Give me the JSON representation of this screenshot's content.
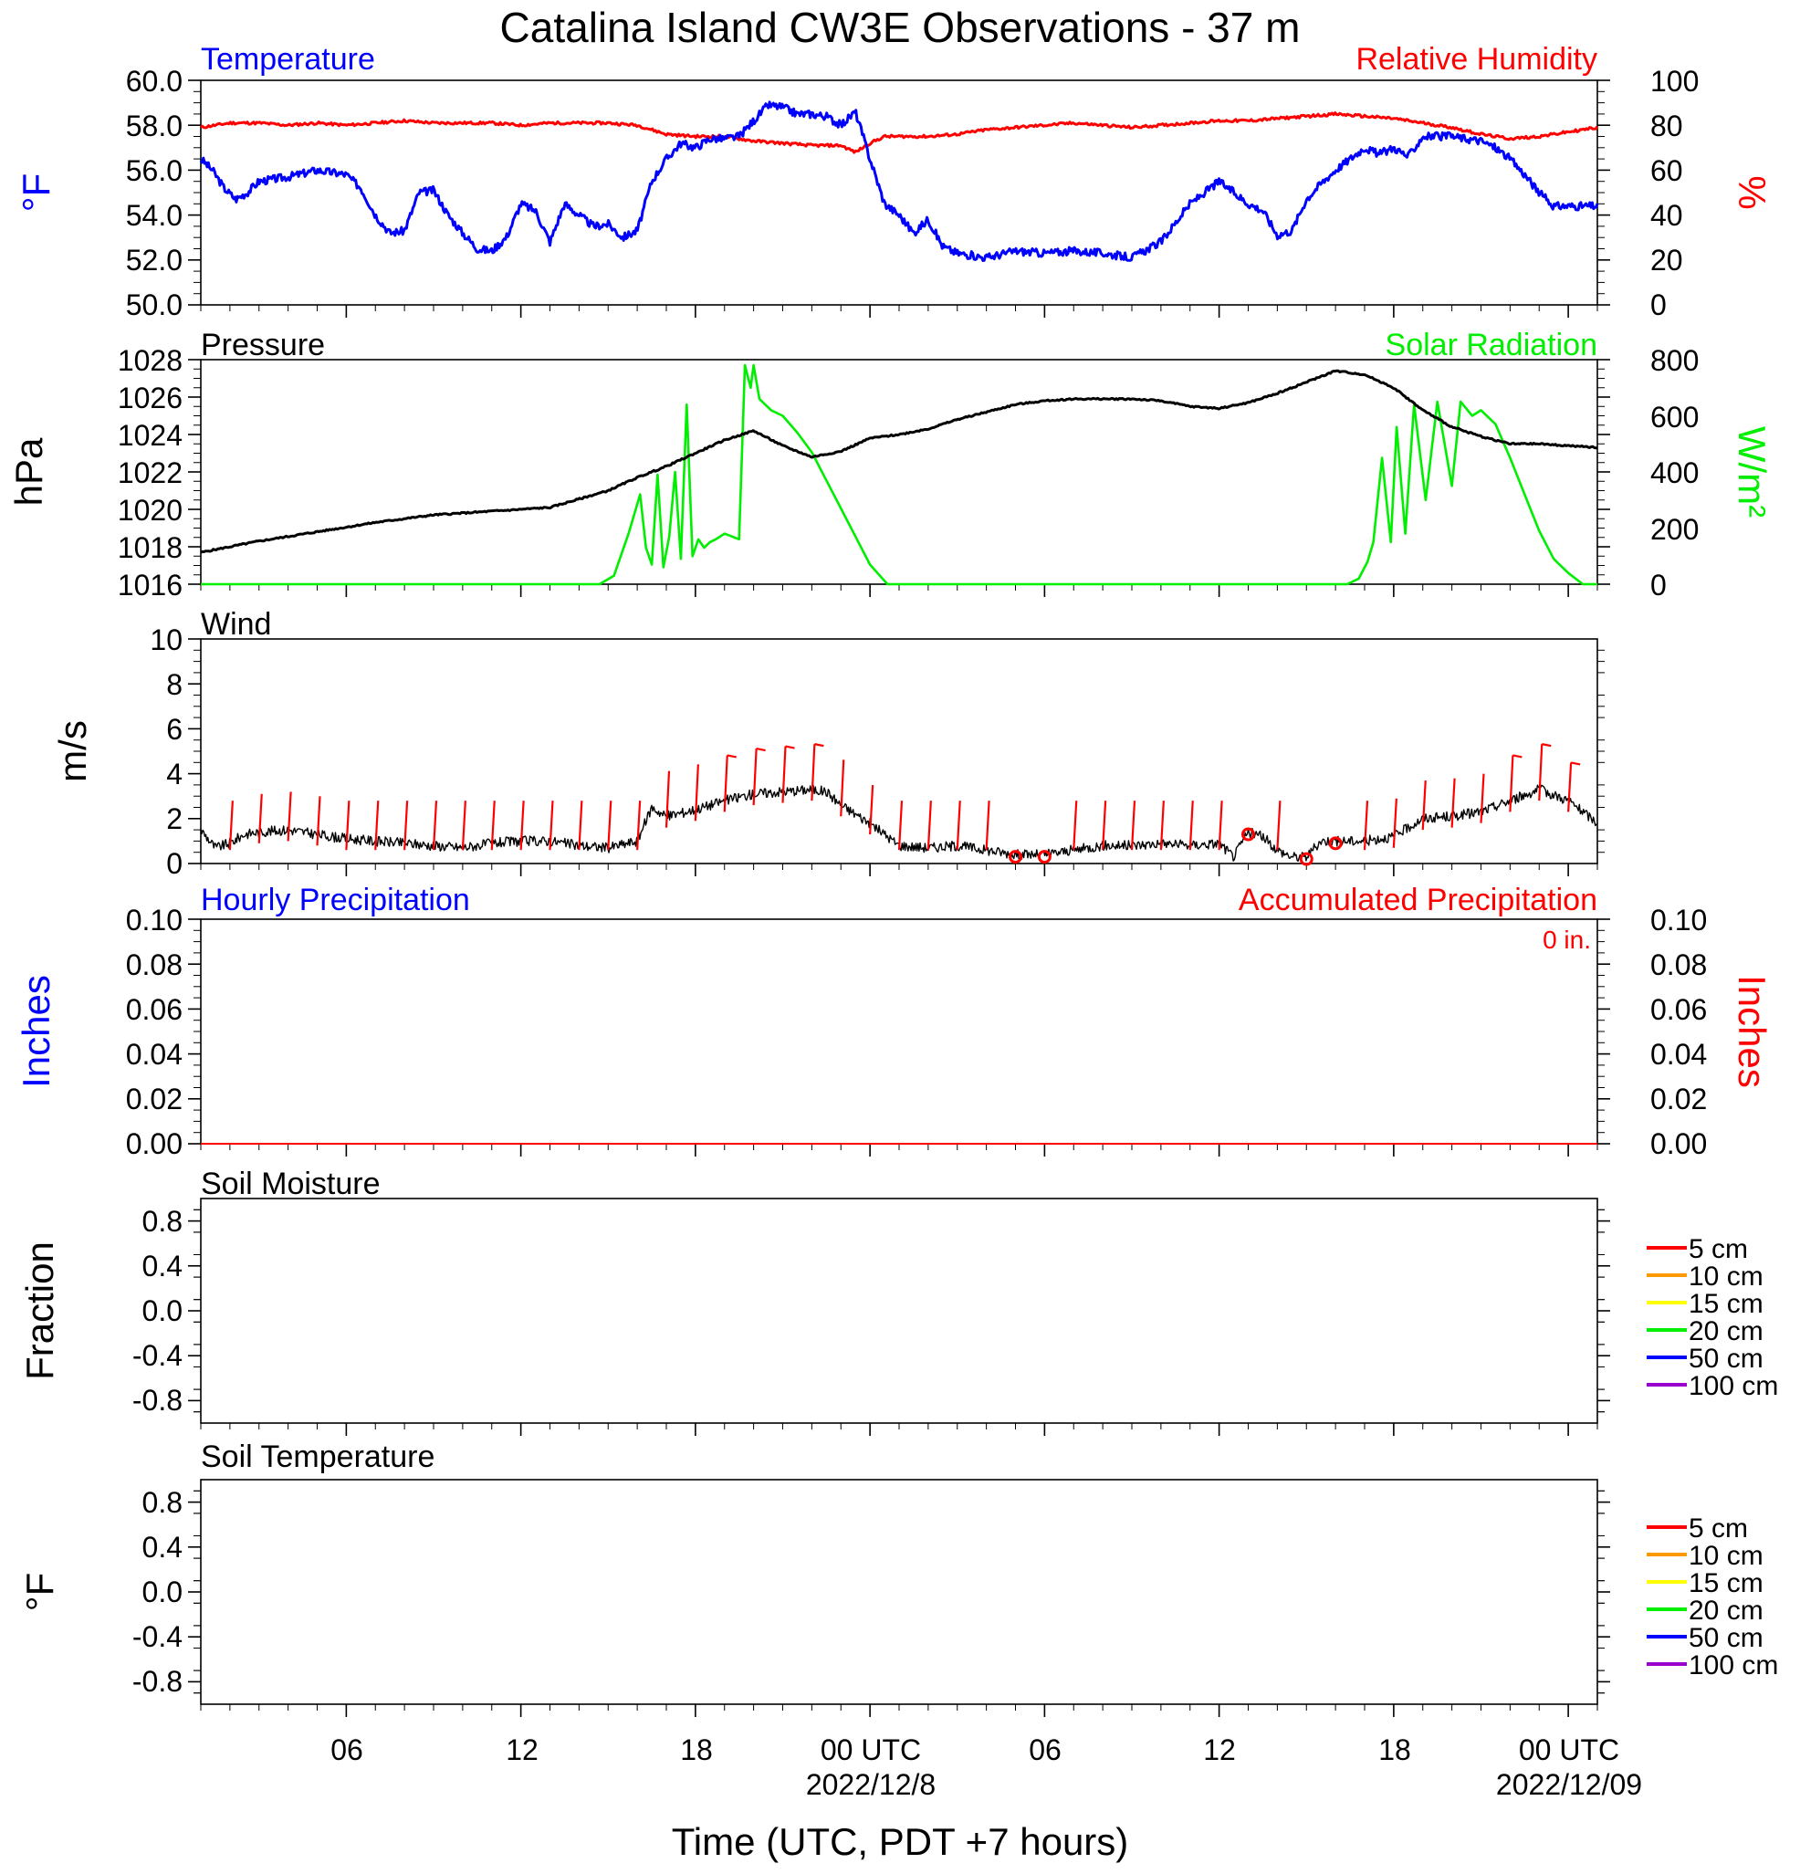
{
  "title": "Catalina Island CW3E Observations - 37 m",
  "xlabel": "Time (UTC, PDT +7 hours)",
  "x_axis": {
    "range_hours": [
      0,
      48
    ],
    "start": "2022-12-07 01:00 UTC",
    "ticks": [
      {
        "h": 5,
        "label": "06",
        "sub": ""
      },
      {
        "h": 11,
        "label": "12",
        "sub": ""
      },
      {
        "h": 17,
        "label": "18",
        "sub": ""
      },
      {
        "h": 23,
        "label": "00 UTC",
        "sub": "2022/12/8"
      },
      {
        "h": 29,
        "label": "06",
        "sub": ""
      },
      {
        "h": 35,
        "label": "12",
        "sub": ""
      },
      {
        "h": 41,
        "label": "18",
        "sub": ""
      },
      {
        "h": 47,
        "label": "00 UTC",
        "sub": "2022/12/09"
      }
    ]
  },
  "colors": {
    "temperature": "#0000ff",
    "humidity": "#ff0000",
    "pressure": "#000000",
    "solar": "#00ee00",
    "wind": "#000000",
    "wind_barb": "#ff0000",
    "hourly_precip": "#0000ff",
    "accum_precip": "#ff0000"
  },
  "panels": {
    "temp_rh": {
      "left_title": "Temperature",
      "right_title": "Relative Humidity",
      "left_ylabel": "°F",
      "right_ylabel": "%",
      "left_ticks": [
        "60.0",
        "58.0",
        "56.0",
        "54.0",
        "52.0",
        "50.0"
      ],
      "right_ticks": [
        "100",
        "80",
        "60",
        "40",
        "20",
        "0"
      ]
    },
    "pressure_solar": {
      "left_title": "Pressure",
      "right_title": "Solar Radiation",
      "left_ylabel": "hPa",
      "right_ylabel": "W/m²",
      "left_ticks": [
        "1028",
        "1026",
        "1024",
        "1022",
        "1020",
        "1018",
        "1016"
      ],
      "right_ticks": [
        "800",
        "600",
        "400",
        "200",
        "0"
      ]
    },
    "wind": {
      "left_title": "Wind",
      "left_ylabel": "m/s",
      "left_ticks": [
        "10",
        "8",
        "6",
        "4",
        "2",
        "0"
      ]
    },
    "precip": {
      "left_title": "Hourly Precipitation",
      "right_title": "Accumulated Precipitation",
      "accum_note": "0 in.",
      "left_ylabel": "Inches",
      "right_ylabel": "Inches",
      "left_ticks": [
        "0.10",
        "0.08",
        "0.06",
        "0.04",
        "0.02",
        "0.00"
      ],
      "right_ticks": [
        "0.10",
        "0.08",
        "0.06",
        "0.04",
        "0.02",
        "0.00"
      ]
    },
    "soil_moisture": {
      "left_title": "Soil Moisture",
      "left_ylabel": "Fraction",
      "left_ticks": [
        "0.8",
        "0.4",
        "0.0",
        "-0.4",
        "-0.8"
      ]
    },
    "soil_temp": {
      "left_title": "Soil Temperature",
      "left_ylabel": "°F",
      "left_ticks": [
        "0.8",
        "0.4",
        "0.0",
        "-0.4",
        "-0.8"
      ]
    }
  },
  "soil_legend": [
    {
      "label": "5 cm",
      "color": "#ff0000"
    },
    {
      "label": "10 cm",
      "color": "#ff9900"
    },
    {
      "label": "15 cm",
      "color": "#ffff00"
    },
    {
      "label": "20 cm",
      "color": "#00ee00"
    },
    {
      "label": "50 cm",
      "color": "#0000ff"
    },
    {
      "label": "100 cm",
      "color": "#9900cc"
    }
  ],
  "chart_data": [
    {
      "type": "line",
      "title": "Temperature",
      "ylabel": "°F",
      "ylim": [
        50,
        60
      ],
      "series": [
        {
          "name": "Temperature",
          "color": "#0000ff",
          "x": [
            0,
            0.4,
            0.8,
            1.2,
            1.6,
            2,
            3,
            4,
            5,
            5.5,
            6,
            6.5,
            7,
            7.5,
            8,
            8.5,
            9,
            9.5,
            10,
            10.5,
            11,
            11.5,
            12,
            12.5,
            13,
            13.5,
            14,
            14.5,
            15,
            15.5,
            16,
            16.5,
            17,
            17.5,
            18,
            18.5,
            19,
            19.5,
            20,
            20.5,
            21,
            21.5,
            22,
            22.5,
            23,
            23.5,
            24,
            24.5,
            25,
            25.5,
            26,
            27,
            28,
            29,
            30,
            31,
            32,
            33,
            34,
            35,
            35.5,
            36,
            36.5,
            37,
            37.5,
            38,
            38.5,
            39,
            39.5,
            40,
            40.5,
            41,
            41.5,
            42,
            42.5,
            43,
            43.5,
            44,
            44.5,
            45,
            45.5,
            46,
            46.5,
            47,
            47.5,
            48
          ],
          "y": [
            56.5,
            56,
            55.2,
            54.7,
            55,
            55.5,
            55.7,
            56,
            55.8,
            55.2,
            54,
            53.2,
            53.3,
            55,
            55.1,
            54,
            53.2,
            52.5,
            52.4,
            53,
            54.5,
            54.2,
            52.8,
            54.5,
            54,
            53.5,
            53.6,
            53,
            53.3,
            55.5,
            56.5,
            57.2,
            57,
            57.4,
            57.4,
            57.5,
            58.2,
            58.9,
            58.8,
            58.5,
            58.5,
            58.4,
            58,
            58.6,
            56.5,
            54.5,
            54,
            53.2,
            53.8,
            52.6,
            52.3,
            52.1,
            52.4,
            52.3,
            52.4,
            52.3,
            52.1,
            52.8,
            54.5,
            55.5,
            55,
            54.5,
            54.2,
            53.1,
            53.3,
            54.7,
            55.4,
            56,
            56.5,
            57,
            56.7,
            57,
            56.6,
            57.5,
            57.5,
            57.5,
            57.4,
            57.3,
            57,
            56.5,
            55.8,
            55,
            54.4,
            54.4,
            54.4,
            54.4
          ]
        },
        {
          "name": "Relative Humidity",
          "color": "#ff0000",
          "x": [
            0,
            1,
            2,
            3,
            4,
            5,
            6,
            7,
            8,
            9,
            10,
            11,
            12,
            13,
            14,
            15,
            16,
            17,
            18,
            19,
            20,
            21,
            22,
            22.5,
            23,
            23.5,
            24,
            25,
            26,
            27,
            28,
            29,
            30,
            31,
            32,
            33,
            34,
            35,
            36,
            37,
            38,
            39,
            40,
            41,
            42,
            43,
            44,
            45,
            46,
            47,
            48
          ],
          "y": [
            79,
            81,
            81,
            80,
            81,
            80,
            81,
            82,
            81,
            81,
            81,
            80,
            81,
            81,
            81,
            80,
            76,
            75,
            75,
            73,
            72,
            71,
            71,
            68,
            72,
            75,
            75,
            75,
            76,
            78,
            79,
            80,
            81,
            80,
            79,
            80,
            81,
            82,
            82,
            83,
            84,
            85,
            84,
            83,
            81,
            79,
            76,
            74,
            75,
            77,
            79
          ]
        }
      ],
      "secondary_ylim": [
        0,
        100
      ]
    },
    {
      "type": "line",
      "title": "Pressure",
      "ylabel": "hPa",
      "ylim": [
        1016,
        1028
      ],
      "series": [
        {
          "name": "Pressure",
          "color": "#000000",
          "x": [
            0,
            2,
            4,
            6,
            8,
            10,
            12,
            14,
            15,
            16,
            17,
            18,
            19,
            20,
            21,
            22,
            23,
            24,
            25,
            26,
            27,
            28,
            29,
            30,
            31,
            32,
            33,
            34,
            35,
            36,
            37,
            38,
            39,
            40,
            41,
            42,
            43,
            44,
            45,
            46,
            47,
            48
          ],
          "y": [
            1017.7,
            1018.3,
            1018.8,
            1019.3,
            1019.7,
            1019.9,
            1020.1,
            1021,
            1021.7,
            1022.3,
            1023,
            1023.7,
            1024.2,
            1023.4,
            1022.8,
            1023.1,
            1023.8,
            1024,
            1024.3,
            1024.8,
            1025.2,
            1025.6,
            1025.8,
            1025.9,
            1025.9,
            1025.9,
            1025.8,
            1025.5,
            1025.4,
            1025.7,
            1026.2,
            1026.8,
            1027.4,
            1027.2,
            1026.5,
            1025.3,
            1024.4,
            1023.9,
            1023.5,
            1023.5,
            1023.4,
            1023.3
          ]
        },
        {
          "name": "Solar Radiation",
          "color": "#00ee00",
          "x": [
            0,
            13.7,
            14.2,
            14.7,
            15.1,
            15.3,
            15.5,
            15.7,
            15.9,
            16.1,
            16.3,
            16.5,
            16.7,
            16.9,
            17.1,
            17.3,
            17.5,
            17.7,
            18,
            18.5,
            18.7,
            18.9,
            19,
            19.2,
            19.6,
            20,
            20.5,
            21,
            21.5,
            22,
            22.5,
            23,
            23.6,
            39.4,
            39.8,
            40.1,
            40.3,
            40.6,
            40.9,
            41.1,
            41.4,
            41.7,
            42.1,
            42.5,
            43,
            43.3,
            43.7,
            44,
            44.5,
            45,
            45.5,
            46,
            46.5,
            47,
            47.5,
            48
          ],
          "y": [
            0,
            0,
            30,
            180,
            320,
            130,
            70,
            390,
            60,
            170,
            400,
            90,
            640,
            100,
            160,
            130,
            150,
            160,
            180,
            160,
            780,
            700,
            780,
            660,
            620,
            600,
            540,
            470,
            370,
            270,
            170,
            70,
            0,
            0,
            20,
            80,
            150,
            450,
            150,
            560,
            180,
            640,
            300,
            650,
            350,
            650,
            600,
            620,
            570,
            450,
            320,
            190,
            90,
            40,
            0,
            0
          ]
        }
      ],
      "secondary_ylim": [
        0,
        800
      ]
    },
    {
      "type": "line",
      "title": "Wind",
      "ylabel": "m/s",
      "ylim": [
        0,
        10
      ],
      "series": [
        {
          "name": "Wind",
          "color": "#000000",
          "x": [
            0,
            0.5,
            1,
            1.5,
            2,
            3,
            4,
            5,
            6,
            7,
            8,
            9,
            10,
            11,
            12,
            13,
            14,
            15,
            15.5,
            16,
            17,
            18,
            19,
            20,
            21,
            21.5,
            22,
            23,
            24,
            25,
            26,
            27,
            28,
            29,
            30,
            31,
            32,
            33,
            34,
            35,
            35.5,
            36,
            36.5,
            37,
            37.5,
            38,
            38.5,
            39,
            40,
            41,
            42,
            43,
            44,
            45,
            46,
            47,
            48
          ],
          "y": [
            1.5,
            0.7,
            0.9,
            1.3,
            1.4,
            1.5,
            1.3,
            1.1,
            1.0,
            0.9,
            0.8,
            0.7,
            0.9,
            1.0,
            1.0,
            0.8,
            0.7,
            1.0,
            2.5,
            2.1,
            2.4,
            2.8,
            3.1,
            3.2,
            3.3,
            3.2,
            2.6,
            1.8,
            0.8,
            0.7,
            0.8,
            0.6,
            0.4,
            0.4,
            0.6,
            0.8,
            0.8,
            0.9,
            0.8,
            0.9,
            0.3,
            1.4,
            1.2,
            0.6,
            0.3,
            0.3,
            1.0,
            1.0,
            1.0,
            1.2,
            2.0,
            2.1,
            2.3,
            2.8,
            3.3,
            2.8,
            1.8
          ]
        }
      ],
      "calm_marks_hours": [
        28,
        29,
        36,
        38,
        39
      ]
    },
    {
      "type": "line",
      "title": "Hourly Precipitation",
      "ylabel": "Inches",
      "ylim": [
        0,
        0.1
      ],
      "series": [
        {
          "name": "Hourly Precipitation",
          "color": "#0000ff",
          "x": [
            0,
            48
          ],
          "y": [
            0,
            0
          ]
        },
        {
          "name": "Accumulated Precipitation",
          "color": "#ff0000",
          "x": [
            0,
            48
          ],
          "y": [
            0,
            0
          ]
        }
      ]
    },
    {
      "type": "line",
      "title": "Soil Moisture",
      "ylabel": "Fraction",
      "ylim": [
        -1,
        1
      ],
      "series": []
    },
    {
      "type": "line",
      "title": "Soil Temperature",
      "ylabel": "°F",
      "ylim": [
        -1,
        1
      ],
      "series": []
    }
  ]
}
